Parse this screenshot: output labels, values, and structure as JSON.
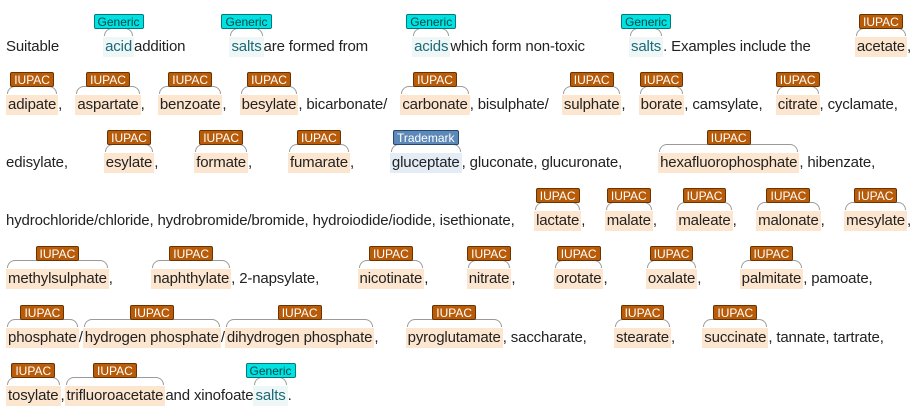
{
  "document": {
    "lines": [
      [
        {
          "text": "Suitable "
        },
        {
          "text": "acid",
          "tag": "Generic"
        },
        {
          "text": " addition "
        },
        {
          "text": "salts",
          "tag": "Generic"
        },
        {
          "text": " are formed from "
        },
        {
          "text": "acids",
          "tag": "Generic"
        },
        {
          "text": " which form non-toxic "
        },
        {
          "text": "salts",
          "tag": "Generic"
        },
        {
          "text": ". Examples include the "
        },
        {
          "text": "acetate",
          "tag": "IUPAC"
        },
        {
          "text": ","
        }
      ],
      [
        {
          "text": "adipate",
          "tag": "IUPAC"
        },
        {
          "text": ", "
        },
        {
          "text": "aspartate",
          "tag": "IUPAC"
        },
        {
          "text": ", "
        },
        {
          "text": "benzoate",
          "tag": "IUPAC"
        },
        {
          "text": ", "
        },
        {
          "text": "besylate",
          "tag": "IUPAC"
        },
        {
          "text": ", bicarbonate/"
        },
        {
          "text": "carbonate",
          "tag": "IUPAC"
        },
        {
          "text": ", bisulphate/"
        },
        {
          "text": "sulphate",
          "tag": "IUPAC"
        },
        {
          "text": ", "
        },
        {
          "text": "borate",
          "tag": "IUPAC"
        },
        {
          "text": ", camsylate, "
        },
        {
          "text": "citrate",
          "tag": "IUPAC"
        },
        {
          "text": ", cyclamate,"
        }
      ],
      [
        {
          "text": "edisylate, "
        },
        {
          "text": "esylate",
          "tag": "IUPAC"
        },
        {
          "text": ", "
        },
        {
          "text": "formate",
          "tag": "IUPAC"
        },
        {
          "text": ", "
        },
        {
          "text": "fumarate",
          "tag": "IUPAC"
        },
        {
          "text": ", "
        },
        {
          "text": "gluceptate",
          "tag": "Trademark"
        },
        {
          "text": ", gluconate, glucuronate, "
        },
        {
          "text": "hexafluorophosphate",
          "tag": "IUPAC"
        },
        {
          "text": ", hibenzate,"
        }
      ],
      [
        {
          "text": "hydrochloride/chloride, hydrobromide/bromide, hydroiodide/iodide, isethionate, "
        },
        {
          "text": "lactate",
          "tag": "IUPAC"
        },
        {
          "text": ", "
        },
        {
          "text": "malate",
          "tag": "IUPAC"
        },
        {
          "text": ", "
        },
        {
          "text": "maleate",
          "tag": "IUPAC"
        },
        {
          "text": ", "
        },
        {
          "text": "malonate",
          "tag": "IUPAC"
        },
        {
          "text": ", "
        },
        {
          "text": "mesylate",
          "tag": "IUPAC"
        },
        {
          "text": ","
        }
      ],
      [
        {
          "text": "methylsulphate",
          "tag": "IUPAC"
        },
        {
          "text": ", "
        },
        {
          "text": "naphthylate",
          "tag": "IUPAC"
        },
        {
          "text": ", 2-napsylate, "
        },
        {
          "text": "nicotinate",
          "tag": "IUPAC"
        },
        {
          "text": ", "
        },
        {
          "text": "nitrate",
          "tag": "IUPAC"
        },
        {
          "text": ", "
        },
        {
          "text": "orotate",
          "tag": "IUPAC"
        },
        {
          "text": ", "
        },
        {
          "text": "oxalate",
          "tag": "IUPAC"
        },
        {
          "text": ", "
        },
        {
          "text": "palmitate",
          "tag": "IUPAC"
        },
        {
          "text": ", pamoate,"
        }
      ],
      [
        {
          "text": "phosphate",
          "tag": "IUPAC"
        },
        {
          "text": "/"
        },
        {
          "text": "hydrogen phosphate",
          "tag": "IUPAC"
        },
        {
          "text": "/"
        },
        {
          "text": "dihydrogen phosphate",
          "tag": "IUPAC"
        },
        {
          "text": ", "
        },
        {
          "text": "pyroglutamate",
          "tag": "IUPAC"
        },
        {
          "text": ", saccharate, "
        },
        {
          "text": "stearate",
          "tag": "IUPAC"
        },
        {
          "text": ", "
        },
        {
          "text": "succinate",
          "tag": "IUPAC"
        },
        {
          "text": ", tannate, tartrate,"
        }
      ],
      [
        {
          "text": "tosylate",
          "tag": "IUPAC"
        },
        {
          "text": ", "
        },
        {
          "text": "trifluoroacetate",
          "tag": "IUPAC"
        },
        {
          "text": " and xinofoate "
        },
        {
          "text": "salts",
          "tag": "Generic"
        },
        {
          "text": "."
        }
      ]
    ]
  },
  "colors": {
    "iupac_tag": "#b85c0a",
    "iupac_highlight": "#fde6cf",
    "generic_tag": "#00e2e2",
    "generic_highlight": "#eef6f6",
    "trademark_tag": "#5d89b8",
    "trademark_highlight": "#e4edf6"
  }
}
